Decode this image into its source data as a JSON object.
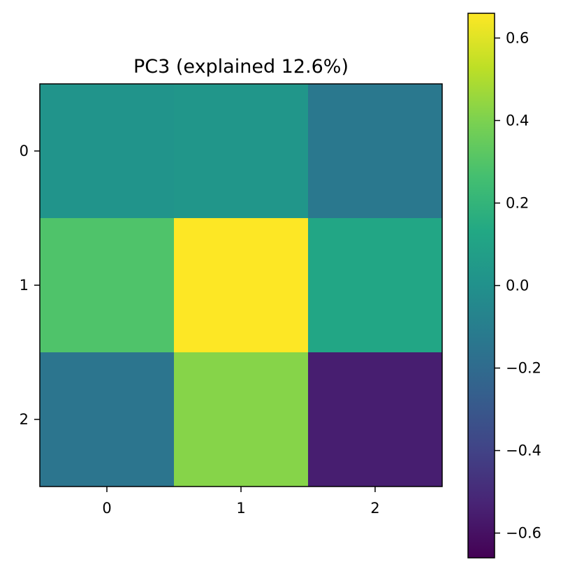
{
  "chart_data": {
    "type": "heatmap",
    "title": "PC3 (explained 12.6%)",
    "xlabel": "",
    "ylabel": "",
    "x_categories": [
      "0",
      "1",
      "2"
    ],
    "y_categories": [
      "0",
      "1",
      "2"
    ],
    "values": [
      [
        0.02,
        0.03,
        -0.13
      ],
      [
        0.29,
        0.66,
        0.12
      ],
      [
        -0.15,
        0.42,
        -0.55
      ]
    ],
    "colormap": "viridis",
    "colorbar": {
      "range": [
        -0.66,
        0.66
      ],
      "ticks": [
        -0.6,
        -0.4,
        -0.2,
        0.0,
        0.2,
        0.4,
        0.6
      ],
      "tick_labels": [
        "−0.6",
        "−0.4",
        "−0.2",
        "0.0",
        "0.2",
        "0.4",
        "0.6"
      ],
      "placement": "right"
    },
    "grid": false
  }
}
